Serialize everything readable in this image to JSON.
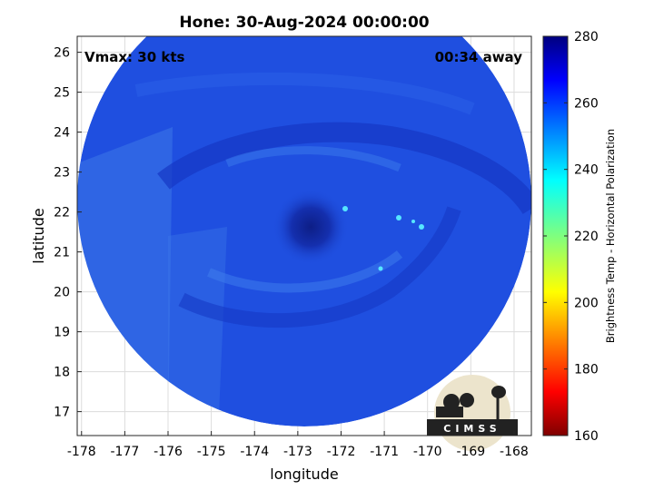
{
  "title": "Hone: 30-Aug-2024 00:00:00",
  "annotations": {
    "vmax": "Vmax: 30 kts",
    "time_away": "00:34 away"
  },
  "axes": {
    "xlabel": "longitude",
    "ylabel": "latitude",
    "xticks": [
      "-178",
      "-177",
      "-176",
      "-175",
      "-174",
      "-173",
      "-172",
      "-171",
      "-170",
      "-169",
      "-168"
    ],
    "yticks": [
      "26",
      "25",
      "24",
      "23",
      "22",
      "21",
      "20",
      "19",
      "18",
      "17"
    ],
    "xlim": [
      -178.1,
      -167.6
    ],
    "ylim": [
      16.4,
      26.4
    ]
  },
  "colorbar": {
    "label": "Brightness Temp - Horizontal Polarization",
    "ticks": [
      "280",
      "260",
      "240",
      "220",
      "200",
      "180",
      "160"
    ],
    "range": [
      160,
      280
    ],
    "colormap": "jet"
  },
  "logo": {
    "text": "CIMSS"
  },
  "colors": {
    "swath_base": "#1f4fe0",
    "swath_dark": "#1234b8",
    "swath_light": "#3f80ee",
    "cyan_spots": "#56e6ff",
    "logo_bg": "#ece4cc"
  }
}
